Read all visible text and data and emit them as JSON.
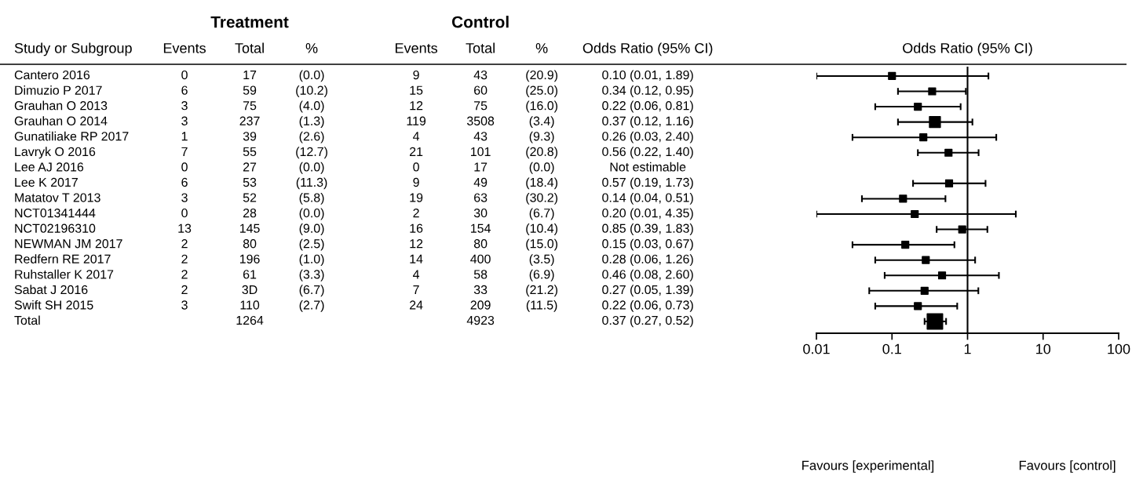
{
  "chart_data": [
    {
      "type": "other",
      "ylabel": "Study or Subgroup",
      "annotations": [
        "Treatment",
        "Control"
      ],
      "categories": [
        "Events",
        "Total",
        "%",
        "Events",
        "Total",
        "%",
        "Odds Ratio (95% CI)"
      ],
      "y_categories": [
        "Cantero 2016",
        "Dimuzio P 2017",
        "Grauhan O 2013",
        "Grauhan O 2014",
        "Gunatiliake RP 2017",
        "Lavryk O 2016",
        "Lee AJ 2016",
        "Lee K 2017",
        "Matatov T 2013",
        "NCT01341444",
        "NCT02196310",
        "NEWMAN JM 2017",
        "Redfern RE 2017",
        "Ruhstaller K 2017",
        "Sabat J 2016",
        "Swift SH 2015",
        "Total"
      ],
      "cell_labels": [
        [
          "0",
          "17",
          "(0.0)",
          "9",
          "43",
          "(20.9)",
          "0.10 (0.01, 1.89)"
        ],
        [
          "6",
          "59",
          "(10.2)",
          "15",
          "60",
          "(25.0)",
          "0.34 (0.12, 0.95)"
        ],
        [
          "3",
          "75",
          "(4.0)",
          "12",
          "75",
          "(16.0)",
          "0.22 (0.06, 0.81)"
        ],
        [
          "3",
          "237",
          "(1.3)",
          "119",
          "3508",
          "(3.4)",
          "0.37 (0.12, 1.16)"
        ],
        [
          "1",
          "39",
          "(2.6)",
          "4",
          "43",
          "(9.3)",
          "0.26 (0.03, 2.40)"
        ],
        [
          "7",
          "55",
          "(12.7)",
          "21",
          "101",
          "(20.8)",
          "0.56 (0.22, 1.40)"
        ],
        [
          "0",
          "27",
          "(0.0)",
          "0",
          "17",
          "(0.0)",
          "Not estimable"
        ],
        [
          "6",
          "53",
          "(11.3)",
          "9",
          "49",
          "(18.4)",
          "0.57 (0.19, 1.73)"
        ],
        [
          "3",
          "52",
          "(5.8)",
          "19",
          "63",
          "(30.2)",
          "0.14 (0.04, 0.51)"
        ],
        [
          "0",
          "28",
          "(0.0)",
          "2",
          "30",
          "(6.7)",
          "0.20 (0.01, 4.35)"
        ],
        [
          "13",
          "145",
          "(9.0)",
          "16",
          "154",
          "(10.4)",
          "0.85 (0.39, 1.83)"
        ],
        [
          "2",
          "80",
          "(2.5)",
          "12",
          "80",
          "(15.0)",
          "0.15 (0.03, 0.67)"
        ],
        [
          "2",
          "196",
          "(1.0)",
          "14",
          "400",
          "(3.5)",
          "0.28 (0.06, 1.26)"
        ],
        [
          "2",
          "61",
          "(3.3)",
          "4",
          "58",
          "(6.9)",
          "0.46 (0.08, 2.60)"
        ],
        [
          "2",
          "3D",
          "(6.7)",
          "7",
          "33",
          "(21.2)",
          "0.27 (0.05, 1.39)"
        ],
        [
          "3",
          "110",
          "(2.7)",
          "24",
          "209",
          "(11.5)",
          "0.22 (0.06, 0.73)"
        ],
        [
          null,
          "1264",
          null,
          null,
          "4923",
          null,
          "0.37 (0.27, 0.52)"
        ]
      ]
    },
    {
      "type": "scatter",
      "title": "Odds Ratio (95% CI)",
      "orientation": "horizontal",
      "categories": [
        null,
        null,
        null,
        null,
        null,
        null,
        null,
        null,
        null,
        null,
        null,
        null,
        null,
        null,
        null,
        null,
        null
      ],
      "values": [
        0.1,
        0.34,
        0.22,
        0.37,
        0.26,
        0.56,
        null,
        0.57,
        0.14,
        0.2,
        0.85,
        0.15,
        0.28,
        0.46,
        0.27,
        0.22,
        0.37
      ],
      "sizes": [
        0.2,
        0.2,
        0.2,
        0.5,
        0.2,
        0.2,
        null,
        0.2,
        0.2,
        0.2,
        0.2,
        0.2,
        0.2,
        0.2,
        0.2,
        0.2,
        1
      ],
      "errors": [
        [
          0.01,
          1.89
        ],
        [
          0.12,
          0.95
        ],
        [
          0.06,
          0.81
        ],
        [
          0.12,
          1.16
        ],
        [
          0.03,
          2.4
        ],
        [
          0.22,
          1.4
        ],
        null,
        [
          0.19,
          1.73
        ],
        [
          0.04,
          0.51
        ],
        [
          0.01,
          4.35
        ],
        [
          0.39,
          1.83
        ],
        [
          0.03,
          0.67
        ],
        [
          0.06,
          1.26
        ],
        [
          0.08,
          2.6
        ],
        [
          0.05,
          1.39
        ],
        [
          0.06,
          0.73
        ],
        [
          0.27,
          0.52
        ]
      ],
      "color": "#000000",
      "marker": "square",
      "log": "x",
      "xlim": [
        0.01,
        100
      ],
      "xticks": [
        0.01,
        0.1,
        1,
        10,
        100
      ],
      "ref_lines": [
        {
          "axis": "x",
          "value": 1,
          "color": "#000000"
        }
      ],
      "annotations": [
        "Favours [experimental]",
        "Favours [control]"
      ],
      "tick_labels": "x",
      "grid": false
    }
  ]
}
